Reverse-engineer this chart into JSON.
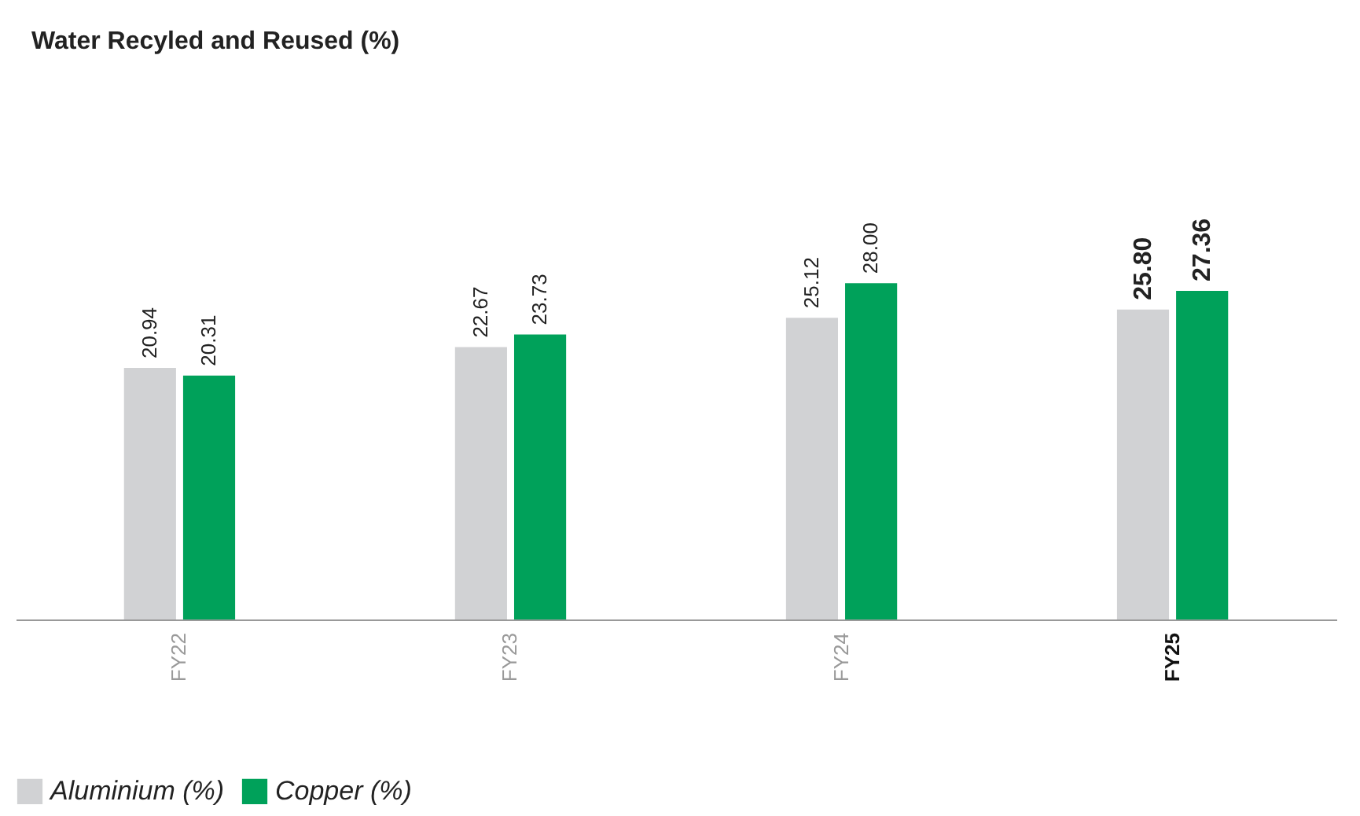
{
  "chart_data": {
    "type": "bar",
    "title": "Water Recyled and Reused (%)",
    "categories": [
      "FY22",
      "FY23",
      "FY24",
      "FY25"
    ],
    "series": [
      {
        "name": "Aluminium (%)",
        "color": "#d1d2d4",
        "values": [
          20.94,
          22.67,
          25.12,
          25.8
        ],
        "value_labels": [
          "20.94",
          "22.67",
          "25.12",
          "25.80"
        ]
      },
      {
        "name": "Copper (%)",
        "color": "#00a15a",
        "values": [
          20.31,
          23.73,
          28.0,
          27.36
        ],
        "value_labels": [
          "20.31",
          "23.73",
          "28.00",
          "27.36"
        ]
      }
    ],
    "data_labels": true,
    "legend": "bottom left",
    "grid": false
  }
}
